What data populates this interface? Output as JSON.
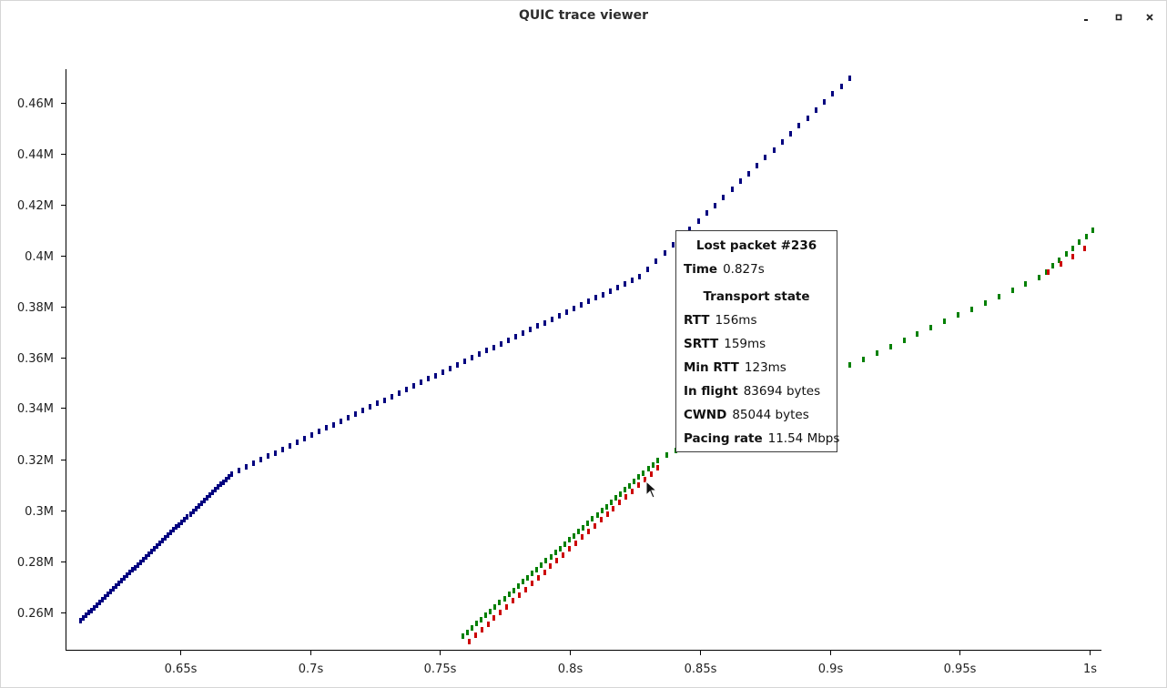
{
  "window": {
    "title": "QUIC trace viewer",
    "controls": [
      "minimize-icon",
      "maximize-icon",
      "close-icon"
    ]
  },
  "chart_data": {
    "type": "scatter",
    "title": "",
    "xlabel": "",
    "ylabel": "",
    "xlim": [
      0.61,
      1.005
    ],
    "ylim": [
      0.2485,
      0.4725
    ],
    "grid": false,
    "x_ticks": [
      {
        "value": 0.65,
        "label": "0.65s"
      },
      {
        "value": 0.7,
        "label": "0.7s"
      },
      {
        "value": 0.75,
        "label": "0.75s"
      },
      {
        "value": 0.8,
        "label": "0.8s"
      },
      {
        "value": 0.85,
        "label": "0.85s"
      },
      {
        "value": 0.9,
        "label": "0.9s"
      },
      {
        "value": 0.95,
        "label": "0.95s"
      },
      {
        "value": 1.0,
        "label": "1s"
      }
    ],
    "y_ticks": [
      {
        "value": 0.26,
        "label": "0.26M"
      },
      {
        "value": 0.28,
        "label": "0.28M"
      },
      {
        "value": 0.3,
        "label": "0.3M"
      },
      {
        "value": 0.32,
        "label": "0.32M"
      },
      {
        "value": 0.34,
        "label": "0.34M"
      },
      {
        "value": 0.36,
        "label": "0.36M"
      },
      {
        "value": 0.38,
        "label": "0.38M"
      },
      {
        "value": 0.4,
        "label": "0.4M"
      },
      {
        "value": 0.42,
        "label": "0.42M"
      },
      {
        "value": 0.44,
        "label": "0.44M"
      },
      {
        "value": 0.46,
        "label": "0.46M"
      }
    ],
    "series": [
      {
        "color": "#00007f",
        "segments": [
          {
            "t0": 0.6115,
            "t1": 0.6695,
            "y0": 0.2565,
            "y1": 0.3142,
            "step": 0.00105
          },
          {
            "t0": 0.6695,
            "t1": 0.8265,
            "y0": 0.3142,
            "y1": 0.3915,
            "step": 0.0028
          },
          {
            "t0": 0.8265,
            "t1": 0.9075,
            "y0": 0.3915,
            "y1": 0.4695,
            "step": 0.0032
          }
        ]
      },
      {
        "color": "#008000",
        "segments": [
          {
            "t0": 0.7585,
            "t1": 0.8335,
            "y0": 0.2505,
            "y1": 0.3195,
            "step": 0.0018
          },
          {
            "t0": 0.8335,
            "t1": 0.851,
            "y0": 0.3195,
            "y1": 0.3295,
            "step": 0.0035
          },
          {
            "t0": 0.9075,
            "t1": 0.9805,
            "y0": 0.3568,
            "y1": 0.3912,
            "step": 0.0053
          },
          {
            "t0": 0.9805,
            "t1": 1.001,
            "y0": 0.3912,
            "y1": 0.4097,
            "step": 0.0026
          }
        ]
      },
      {
        "color": "#cc0000",
        "segments": [
          {
            "t0": 0.761,
            "t1": 0.8335,
            "y0": 0.2485,
            "y1": 0.3165,
            "step": 0.0024
          },
          {
            "t0": 0.984,
            "t1": 0.998,
            "y0": 0.3935,
            "y1": 0.4025,
            "step": 0.0045
          }
        ]
      }
    ]
  },
  "tooltip": {
    "heading": "Lost packet #236",
    "time_label": "Time",
    "time_value": "0.827s",
    "section": "Transport state",
    "rows": [
      {
        "label": "RTT",
        "value": "156ms"
      },
      {
        "label": "SRTT",
        "value": "159ms"
      },
      {
        "label": "Min RTT",
        "value": "123ms"
      },
      {
        "label": "In flight",
        "value": "83694 bytes"
      },
      {
        "label": "CWND",
        "value": "85044 bytes"
      },
      {
        "label": "Pacing rate",
        "value": "11.54 Mbps"
      }
    ]
  }
}
